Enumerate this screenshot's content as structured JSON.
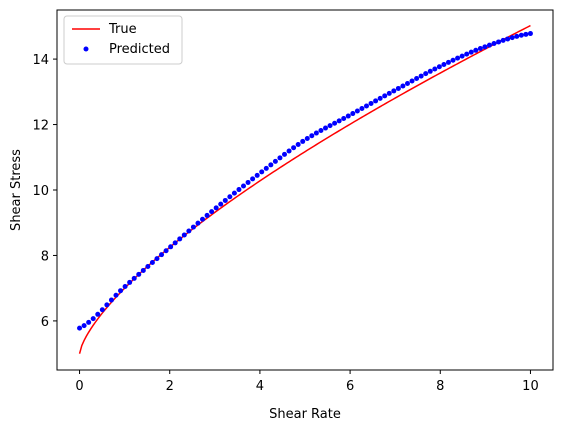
{
  "chart_data": {
    "type": "line",
    "xlabel": "Shear Rate",
    "ylabel": "Shear Stress",
    "xlim": [
      -0.5,
      10.5
    ],
    "ylim": [
      4.5,
      15.5
    ],
    "xticks": [
      0,
      2,
      4,
      6,
      8,
      10
    ],
    "yticks": [
      6,
      8,
      10,
      12,
      14
    ],
    "grid": false,
    "legend_position": "top-left",
    "series": [
      {
        "name": "True",
        "style": "line",
        "color": "#ff0000",
        "model": {
          "tau0": 5.0,
          "K": 2.0,
          "n": 0.7
        }
      },
      {
        "name": "Predicted",
        "style": "markers",
        "color": "#0000ff",
        "x_range": [
          0,
          10
        ],
        "count": 100,
        "points": [
          [
            0,
            5.78
          ],
          [
            1,
            7.04
          ],
          [
            2,
            8.24
          ],
          [
            3,
            9.42
          ],
          [
            4,
            10.51
          ],
          [
            5,
            11.53
          ],
          [
            6,
            12.29
          ],
          [
            7,
            13.05
          ],
          [
            8,
            13.78
          ],
          [
            9,
            14.38
          ],
          [
            10,
            14.78
          ]
        ]
      }
    ]
  }
}
